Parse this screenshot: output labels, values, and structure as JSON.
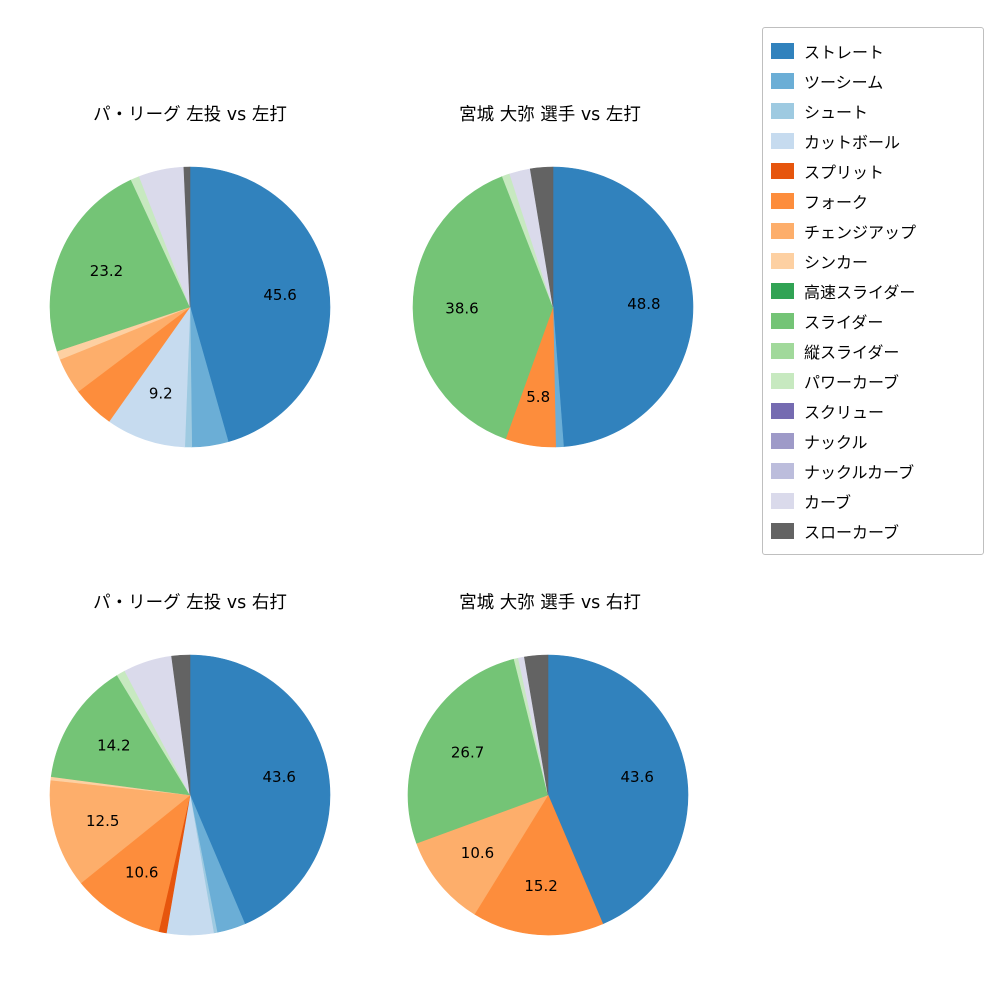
{
  "figure": {
    "background": "#ffffff"
  },
  "label_threshold": 5.8,
  "chart_data": [
    {
      "type": "pie",
      "title": "パ・リーグ 左投 vs 左打",
      "start_angle": "top",
      "direction": "clockwise",
      "labels": [
        "ストレート",
        "ツーシーム",
        "シュート",
        "カットボール",
        "フォーク",
        "チェンジアップ",
        "シンカー",
        "スライダー",
        "パワーカーブ",
        "カーブ",
        "スローカーブ"
      ],
      "values": [
        45.6,
        4.2,
        0.8,
        9.2,
        4.9,
        4.2,
        1.0,
        23.2,
        1.0,
        5.2,
        0.7
      ],
      "shown_value_labels": [
        "45.6",
        "9.2",
        "23.2"
      ]
    },
    {
      "type": "pie",
      "title": "宮城 大弥 選手 vs 左打",
      "start_angle": "top",
      "direction": "clockwise",
      "labels": [
        "ストレート",
        "ツーシーム",
        "フォーク",
        "スライダー",
        "パワーカーブ",
        "カーブ",
        "スローカーブ"
      ],
      "values": [
        48.8,
        0.9,
        5.8,
        38.6,
        0.9,
        2.4,
        2.6
      ],
      "shown_value_labels": [
        "48.8",
        "5.8",
        "38.6"
      ]
    },
    {
      "type": "pie",
      "title": "パ・リーグ 左投 vs 右打",
      "start_angle": "top",
      "direction": "clockwise",
      "labels": [
        "ストレート",
        "ツーシーム",
        "シュート",
        "カットボール",
        "スプリット",
        "フォーク",
        "チェンジアップ",
        "シンカー",
        "スライダー",
        "パワーカーブ",
        "カーブ",
        "スローカーブ"
      ],
      "values": [
        43.6,
        3.3,
        0.4,
        5.4,
        0.9,
        10.6,
        12.5,
        0.4,
        14.2,
        1.0,
        5.6,
        2.1
      ],
      "shown_value_labels": [
        "43.6",
        "10.6",
        "12.5",
        "14.2"
      ]
    },
    {
      "type": "pie",
      "title": "宮城 大弥 選手 vs 右打",
      "start_angle": "top",
      "direction": "clockwise",
      "labels": [
        "ストレート",
        "フォーク",
        "チェンジアップ",
        "スライダー",
        "パワーカーブ",
        "カーブ",
        "スローカーブ"
      ],
      "values": [
        43.6,
        15.2,
        10.6,
        26.7,
        0.5,
        0.7,
        2.7
      ],
      "shown_value_labels": [
        "43.6",
        "15.2",
        "10.6",
        "26.7"
      ]
    }
  ],
  "legend": {
    "position": "upper right",
    "entries": [
      {
        "label": "ストレート",
        "color": "#3182bd"
      },
      {
        "label": "ツーシーム",
        "color": "#6baed6"
      },
      {
        "label": "シュート",
        "color": "#9ecae1"
      },
      {
        "label": "カットボール",
        "color": "#c6dbef"
      },
      {
        "label": "スプリット",
        "color": "#e6550d"
      },
      {
        "label": "フォーク",
        "color": "#fd8d3c"
      },
      {
        "label": "チェンジアップ",
        "color": "#fdae6b"
      },
      {
        "label": "シンカー",
        "color": "#fdd0a2"
      },
      {
        "label": "高速スライダー",
        "color": "#31a354"
      },
      {
        "label": "スライダー",
        "color": "#74c476"
      },
      {
        "label": "縦スライダー",
        "color": "#a1d99b"
      },
      {
        "label": "パワーカーブ",
        "color": "#c7e9c0"
      },
      {
        "label": "スクリュー",
        "color": "#756bb1"
      },
      {
        "label": "ナックル",
        "color": "#9e9ac8"
      },
      {
        "label": "ナックルカーブ",
        "color": "#bcbddc"
      },
      {
        "label": "カーブ",
        "color": "#dadaeb"
      },
      {
        "label": "スローカーブ",
        "color": "#636363"
      }
    ]
  }
}
